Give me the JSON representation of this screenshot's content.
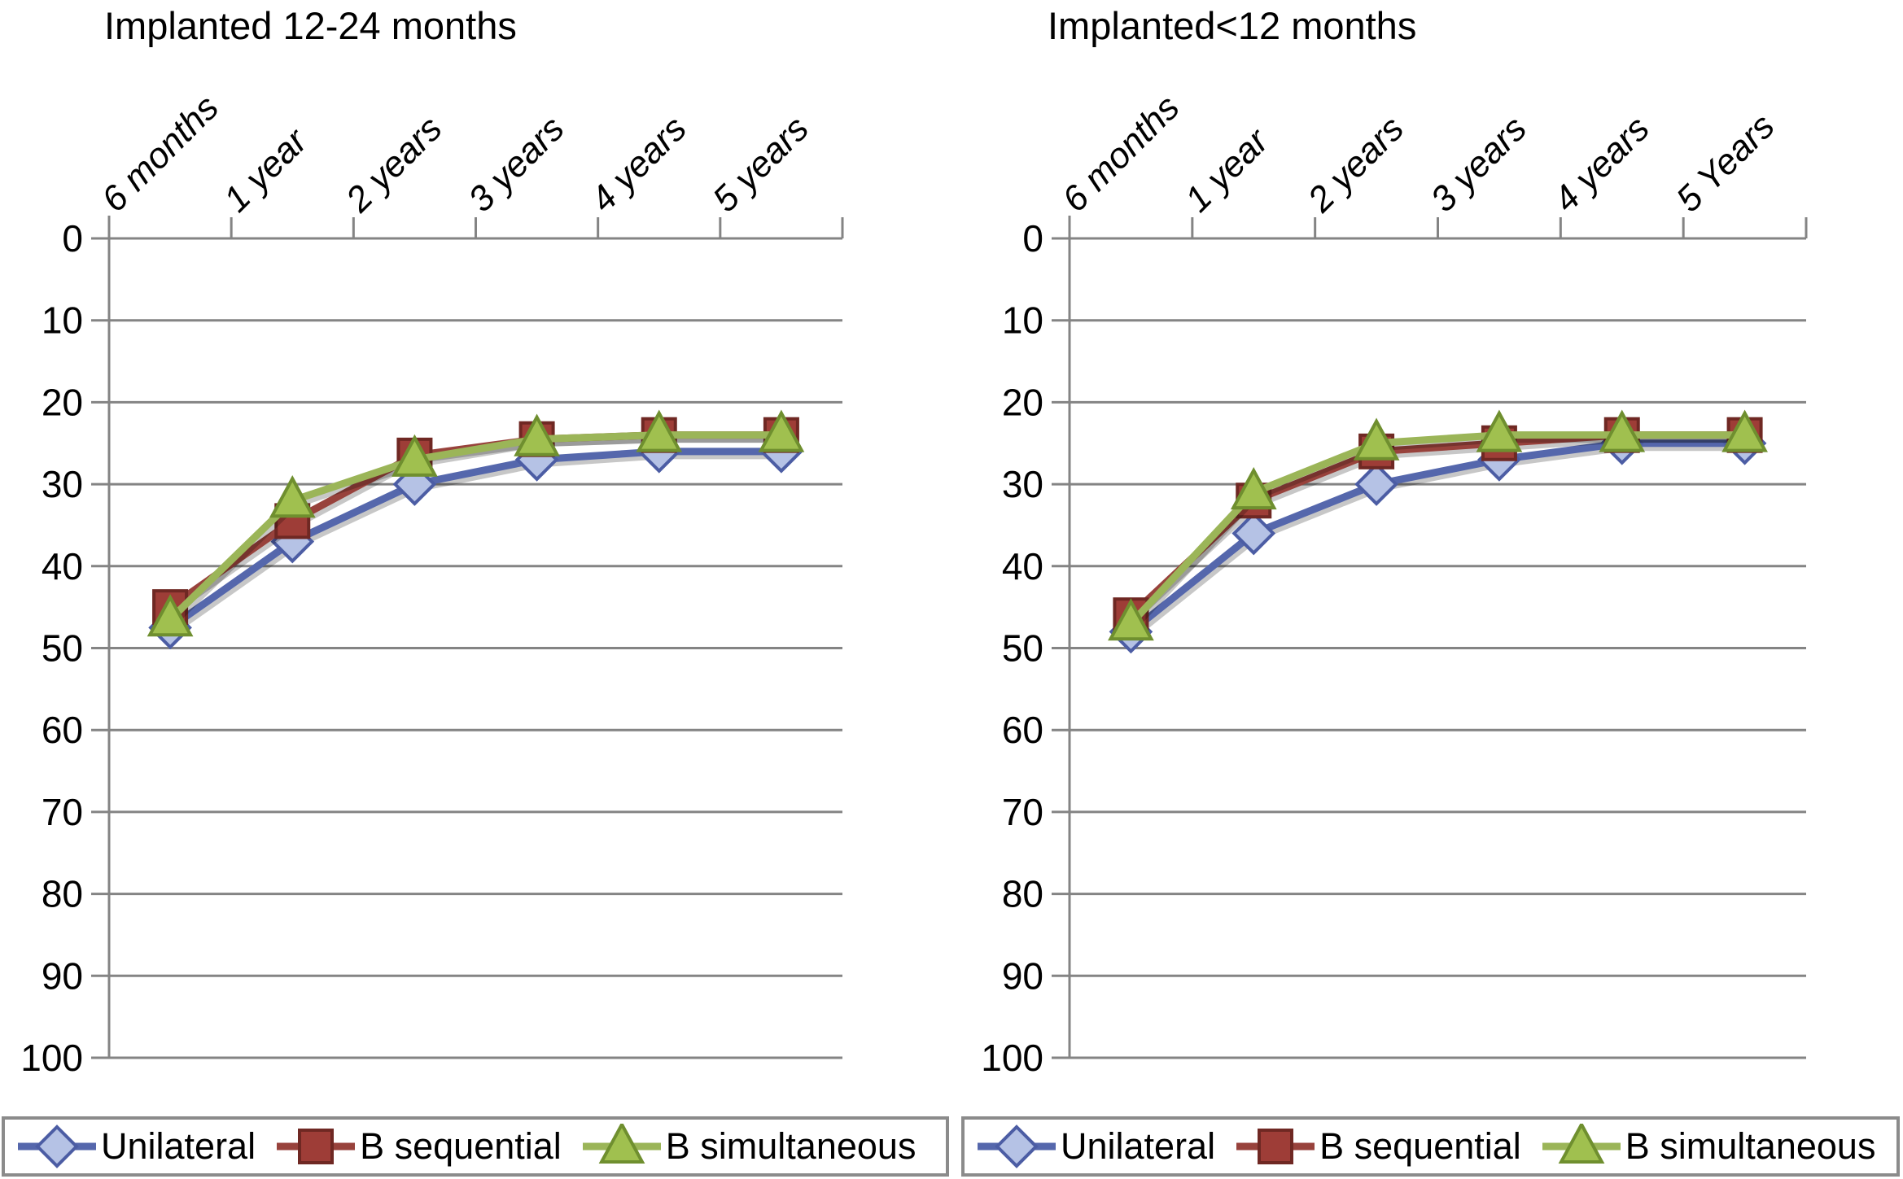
{
  "colors": {
    "grid": "#848484",
    "axis": "#848484",
    "text": "#000000",
    "line_shadow": "rgba(0,0,0,0.22)"
  },
  "chart_data": [
    {
      "type": "line",
      "title": "Implanted 12-24 months",
      "categories": [
        "6 months",
        "1 year",
        "2 years",
        "3 years",
        "4 years",
        "5 years"
      ],
      "y_ticks": [
        0,
        10,
        20,
        30,
        40,
        50,
        60,
        70,
        80,
        90,
        100
      ],
      "ylim": [
        0,
        100
      ],
      "y_axis_inverted": true,
      "grid": "horizontal",
      "legend_position": "bottom",
      "series": [
        {
          "name": "Unilateral",
          "marker": "diamond",
          "line_color": "#5567ac",
          "fill_color": "#b5c2e5",
          "edge_color": "#4c5da4",
          "values": [
            47.5,
            37,
            30,
            27,
            26,
            26
          ]
        },
        {
          "name": "B sequential",
          "marker": "square",
          "line_color": "#98423c",
          "fill_color": "#9e3d37",
          "edge_color": "#6f2823",
          "values": [
            45,
            34.5,
            26.5,
            24.5,
            24,
            24
          ]
        },
        {
          "name": "B simultaneous",
          "marker": "triangle",
          "line_color": "#9bb558",
          "fill_color": "#a0c04f",
          "edge_color": "#6f8f2f",
          "values": [
            46.5,
            32,
            27,
            24.5,
            24,
            24
          ]
        }
      ]
    },
    {
      "type": "line",
      "title": "Implanted<12 months",
      "categories": [
        "6 months",
        "1 year",
        "2 years",
        "3 years",
        "4 years",
        "5 Years"
      ],
      "y_ticks": [
        0,
        10,
        20,
        30,
        40,
        50,
        60,
        70,
        80,
        90,
        100
      ],
      "ylim": [
        0,
        100
      ],
      "y_axis_inverted": true,
      "grid": "horizontal",
      "legend_position": "bottom",
      "series": [
        {
          "name": "Unilateral",
          "marker": "diamond",
          "line_color": "#5567ac",
          "fill_color": "#b5c2e5",
          "edge_color": "#4c5da4",
          "values": [
            48,
            36,
            30,
            27,
            25,
            25
          ]
        },
        {
          "name": "B sequential",
          "marker": "square",
          "line_color": "#98423c",
          "fill_color": "#9e3d37",
          "edge_color": "#6f2823",
          "values": [
            46,
            32,
            26,
            25,
            24,
            24
          ]
        },
        {
          "name": "B simultaneous",
          "marker": "triangle",
          "line_color": "#9bb558",
          "fill_color": "#a0c04f",
          "edge_color": "#6f8f2f",
          "values": [
            47,
            31,
            25,
            24,
            24,
            24
          ]
        }
      ]
    }
  ]
}
